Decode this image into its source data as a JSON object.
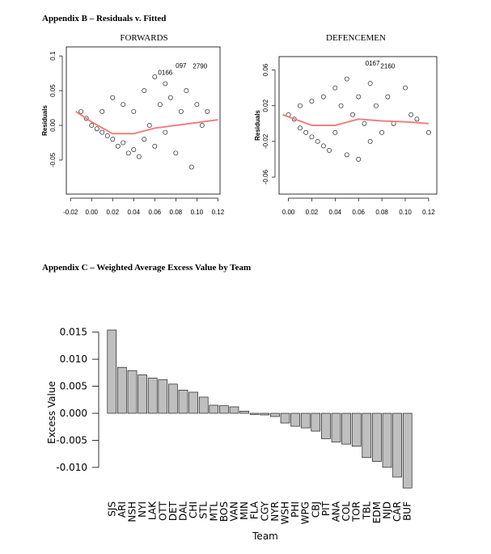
{
  "headings": [
    "Appendix B – Residuals v. Fitted",
    "Appendix C – Weighted Average Excess Value by Team"
  ],
  "chart_data": [
    {
      "type": "scatter",
      "title": "FORWARDS",
      "y_label": "Residuals",
      "xlim": [
        -0.024,
        0.122
      ],
      "ylim": [
        -0.099,
        0.113
      ],
      "xticks": [
        -0.02,
        {
          "value": 0,
          "label": "0.00"
        },
        0.02,
        0.04,
        0.06,
        0.08,
        {
          "value": 0.1,
          "label": "0.10"
        },
        0.12
      ],
      "yticks": [
        -0.05,
        {
          "value": 0,
          "label": "0.00"
        },
        0.05,
        0.1
      ],
      "series": [
        {
          "kind": "points",
          "color": "#000000",
          "x": [
            -0.01,
            -0.005,
            0.0,
            0.005,
            0.01,
            0.01,
            0.015,
            0.02,
            0.02,
            0.025,
            0.03,
            0.03,
            0.035,
            0.04,
            0.04,
            0.045,
            0.05,
            0.05,
            0.055,
            0.06,
            0.06,
            0.065,
            0.07,
            0.07,
            0.075,
            0.08,
            0.085,
            0.09,
            0.095,
            0.1,
            0.105,
            0.11
          ],
          "values": [
            0.02,
            0.01,
            0.0,
            -0.005,
            -0.01,
            0.02,
            -0.015,
            -0.02,
            0.04,
            -0.03,
            -0.025,
            0.03,
            -0.04,
            -0.035,
            0.02,
            -0.045,
            0.05,
            -0.02,
            0.0,
            0.07,
            -0.03,
            0.03,
            0.06,
            -0.01,
            0.04,
            -0.04,
            0.02,
            0.05,
            -0.06,
            0.03,
            0.0,
            0.02
          ]
        },
        {
          "kind": "line",
          "color": "#f08080",
          "x": [
            -0.015,
            0.0,
            0.02,
            0.04,
            0.06,
            0.08,
            0.1,
            0.12
          ],
          "values": [
            0.02,
            0.005,
            -0.012,
            -0.012,
            -0.004,
            0.0,
            0.004,
            0.008
          ]
        }
      ],
      "annotations": [
        {
          "text": "0166",
          "x": 0.07,
          "y": 0.073
        },
        {
          "text": "097",
          "x": 0.085,
          "y": 0.083
        },
        {
          "text": "2790",
          "x": 0.103,
          "y": 0.082
        }
      ]
    },
    {
      "type": "scatter",
      "title": "DEFENCEMEN",
      "y_label": "Residuals",
      "xlim": [
        -0.008,
        0.127
      ],
      "ylim": [
        -0.079,
        0.075
      ],
      "xticks": [
        {
          "value": 0,
          "label": "0.00"
        },
        0.02,
        0.04,
        0.06,
        0.08,
        {
          "value": 0.1,
          "label": "0.10"
        },
        0.12
      ],
      "yticks": [
        -0.06,
        -0.02,
        0.02,
        0.06
      ],
      "series": [
        {
          "kind": "points",
          "color": "#000000",
          "x": [
            0.0,
            0.005,
            0.01,
            0.01,
            0.015,
            0.02,
            0.02,
            0.025,
            0.03,
            0.03,
            0.035,
            0.04,
            0.04,
            0.045,
            0.05,
            0.05,
            0.055,
            0.06,
            0.06,
            0.065,
            0.07,
            0.07,
            0.075,
            0.08,
            0.085,
            0.09,
            0.1,
            0.105,
            0.11,
            0.12
          ],
          "values": [
            0.01,
            0.005,
            -0.005,
            0.02,
            -0.01,
            -0.015,
            0.025,
            -0.02,
            -0.025,
            0.03,
            -0.03,
            0.04,
            -0.01,
            0.02,
            0.05,
            -0.035,
            0.01,
            0.03,
            -0.04,
            0.0,
            0.045,
            -0.02,
            0.02,
            -0.01,
            0.03,
            0.0,
            0.04,
            0.01,
            0.005,
            -0.01
          ]
        },
        {
          "kind": "line",
          "color": "#f08080",
          "x": [
            -0.005,
            0.02,
            0.04,
            0.06,
            0.08,
            0.1,
            0.12
          ],
          "values": [
            0.01,
            -0.002,
            -0.002,
            0.005,
            0.003,
            0.002,
            0.0
          ]
        }
      ],
      "annotations": [
        {
          "text": "0167",
          "x": 0.072,
          "y": 0.065
        },
        {
          "text": "2160",
          "x": 0.085,
          "y": 0.062
        }
      ]
    },
    {
      "type": "bar",
      "x_label": "Team",
      "y_label": "Excess Value",
      "color": "#bfbfbf",
      "ylim": [
        -0.0145,
        0.016
      ],
      "yticks": [
        {
          "value": -0.01,
          "label": "-0.010"
        },
        -0.005,
        {
          "value": 0,
          "label": "0.000"
        },
        0.005,
        {
          "value": 0.01,
          "label": "0.010"
        },
        0.015
      ],
      "categories": [
        "SJS",
        "ARI",
        "NSH",
        "NYI",
        "LAK",
        "OTT",
        "DET",
        "DAL",
        "CHI",
        "STL",
        "MTL",
        "BOS",
        "VAN",
        "MIN",
        "FLA",
        "CGY",
        "NYR",
        "WSH",
        "PHI",
        "WPG",
        "CBJ",
        "PIT",
        "ANA",
        "COL",
        "TOR",
        "TBL",
        "EDM",
        "NJD",
        "CAR",
        "BUF"
      ],
      "values": [
        0.0154,
        0.0085,
        0.0079,
        0.0071,
        0.0065,
        0.0062,
        0.0054,
        0.0043,
        0.0039,
        0.003,
        0.0015,
        0.0014,
        0.0012,
        0.0004,
        -0.0002,
        -0.0003,
        -0.0006,
        -0.0018,
        -0.0024,
        -0.0027,
        -0.0033,
        -0.0047,
        -0.0053,
        -0.0057,
        -0.0061,
        -0.0082,
        -0.0089,
        -0.01,
        -0.0118,
        -0.0138
      ]
    }
  ]
}
